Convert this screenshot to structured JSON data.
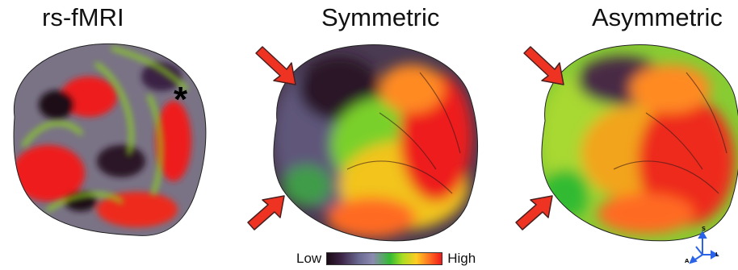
{
  "panels": [
    {
      "title": "rs-fMRI"
    },
    {
      "title": "Symmetric"
    },
    {
      "title": "Asymmetric"
    }
  ],
  "annotation": {
    "asterisk": "*"
  },
  "legend": {
    "low": "Low",
    "high": "High",
    "colors": [
      "#1a0a14",
      "#3b2244",
      "#6a6a92",
      "#8c8ab0",
      "#33bb33",
      "#aadd22",
      "#ffcc22",
      "#ff6a22",
      "#ee1a1a"
    ]
  },
  "orientation": {
    "superior": "S",
    "anterior": "A",
    "left": "L"
  },
  "colors": {
    "arrow": "#ee3322",
    "arrow_outline": "#4a1f1f",
    "orientation_axes": "#2b63e8"
  }
}
